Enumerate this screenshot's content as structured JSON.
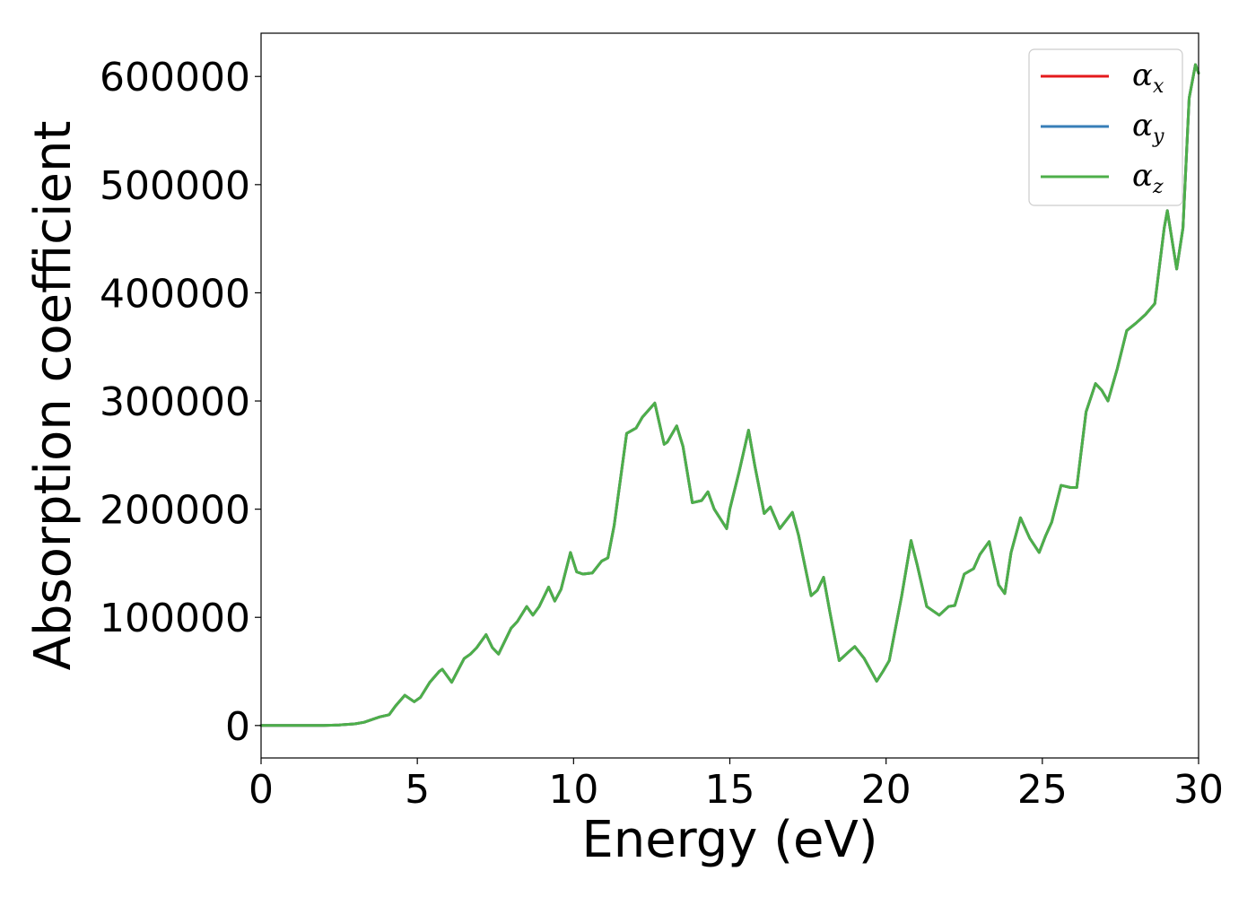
{
  "chart_data": {
    "type": "line",
    "xlabel": "Energy (eV)",
    "ylabel": "Absorption coefficient",
    "xlim": [
      0,
      30
    ],
    "ylim": [
      -30000,
      640000
    ],
    "xticks": [
      0,
      5,
      10,
      15,
      20,
      25,
      30
    ],
    "xtick_labels": [
      "0",
      "5",
      "10",
      "15",
      "20",
      "25",
      "30"
    ],
    "yticks": [
      0,
      100000,
      200000,
      300000,
      400000,
      500000,
      600000
    ],
    "ytick_labels": [
      "0",
      "100000",
      "200000",
      "300000",
      "400000",
      "500000",
      "600000"
    ],
    "grid": false,
    "legend_position": "top-right",
    "series": [
      {
        "name": "αx",
        "legend_base": "α",
        "legend_sub": "x",
        "color": "#e41a1c",
        "x": [
          0,
          1,
          2,
          2.5,
          3,
          3.3,
          3.6,
          3.8,
          4.1,
          4.3,
          4.6,
          4.9,
          5.1,
          5.4,
          5.7,
          5.8,
          6.1,
          6.5,
          6.7,
          6.9,
          7.2,
          7.4,
          7.6,
          8.0,
          8.2,
          8.5,
          8.7,
          8.9,
          9.2,
          9.4,
          9.6,
          9.9,
          10.1,
          10.3,
          10.6,
          10.9,
          11.1,
          11.3,
          11.7,
          12.0,
          12.2,
          12.6,
          12.9,
          13.0,
          13.3,
          13.5,
          13.8,
          14.1,
          14.3,
          14.5,
          14.9,
          15.0,
          15.3,
          15.6,
          15.8,
          16.1,
          16.3,
          16.6,
          17.0,
          17.2,
          17.6,
          17.8,
          18.0,
          18.2,
          18.5,
          18.8,
          19.0,
          19.3,
          19.7,
          19.9,
          20.1,
          20.5,
          20.8,
          21.0,
          21.3,
          21.7,
          22.0,
          22.2,
          22.5,
          22.8,
          23.0,
          23.3,
          23.6,
          23.8,
          24.0,
          24.3,
          24.6,
          24.9,
          25.1,
          25.3,
          25.6,
          25.9,
          26.1,
          26.4,
          26.7,
          26.9,
          27.1,
          27.4,
          27.7,
          28.0,
          28.3,
          28.6,
          28.9,
          29.0,
          29.2,
          29.3,
          29.5,
          29.7,
          29.9,
          30.0
        ],
        "y": [
          0,
          0,
          0,
          500,
          1500,
          3000,
          6000,
          8000,
          10000,
          18000,
          28000,
          22000,
          26000,
          40000,
          50000,
          52000,
          40000,
          62000,
          66000,
          72000,
          84000,
          72000,
          66000,
          90000,
          96000,
          110000,
          102000,
          110000,
          128000,
          115000,
          126000,
          160000,
          142000,
          140000,
          141000,
          152000,
          155000,
          185000,
          270000,
          275000,
          285000,
          298000,
          260000,
          262000,
          277000,
          258000,
          206000,
          208000,
          216000,
          200000,
          182000,
          200000,
          235000,
          273000,
          240000,
          196000,
          202000,
          182000,
          197000,
          176000,
          120000,
          125000,
          137000,
          105000,
          60000,
          68000,
          73000,
          62000,
          41000,
          50000,
          60000,
          120000,
          171000,
          148000,
          110000,
          102000,
          110000,
          111000,
          140000,
          145000,
          158000,
          170000,
          130000,
          122000,
          160000,
          192000,
          173000,
          160000,
          175000,
          188000,
          222000,
          220000,
          220000,
          290000,
          316000,
          310000,
          300000,
          330000,
          365000,
          372000,
          380000,
          390000,
          460000,
          476000,
          440000,
          422000,
          460000,
          580000,
          611000,
          603000
        ]
      },
      {
        "name": "αy",
        "legend_base": "α",
        "legend_sub": "y",
        "color": "#377eb8",
        "x": [
          0,
          1,
          2,
          2.5,
          3,
          3.3,
          3.6,
          3.8,
          4.1,
          4.3,
          4.6,
          4.9,
          5.1,
          5.4,
          5.7,
          5.8,
          6.1,
          6.5,
          6.7,
          6.9,
          7.2,
          7.4,
          7.6,
          8.0,
          8.2,
          8.5,
          8.7,
          8.9,
          9.2,
          9.4,
          9.6,
          9.9,
          10.1,
          10.3,
          10.6,
          10.9,
          11.1,
          11.3,
          11.7,
          12.0,
          12.2,
          12.6,
          12.9,
          13.0,
          13.3,
          13.5,
          13.8,
          14.1,
          14.3,
          14.5,
          14.9,
          15.0,
          15.3,
          15.6,
          15.8,
          16.1,
          16.3,
          16.6,
          17.0,
          17.2,
          17.6,
          17.8,
          18.0,
          18.2,
          18.5,
          18.8,
          19.0,
          19.3,
          19.7,
          19.9,
          20.1,
          20.5,
          20.8,
          21.0,
          21.3,
          21.7,
          22.0,
          22.2,
          22.5,
          22.8,
          23.0,
          23.3,
          23.6,
          23.8,
          24.0,
          24.3,
          24.6,
          24.9,
          25.1,
          25.3,
          25.6,
          25.9,
          26.1,
          26.4,
          26.7,
          26.9,
          27.1,
          27.4,
          27.7,
          28.0,
          28.3,
          28.6,
          28.9,
          29.0,
          29.2,
          29.3,
          29.5,
          29.7,
          29.9,
          30.0
        ],
        "y": [
          0,
          0,
          0,
          500,
          1500,
          3000,
          6000,
          8000,
          10000,
          18000,
          28000,
          22000,
          26000,
          40000,
          50000,
          52000,
          40000,
          62000,
          66000,
          72000,
          84000,
          72000,
          66000,
          90000,
          96000,
          110000,
          102000,
          110000,
          128000,
          115000,
          126000,
          160000,
          142000,
          140000,
          141000,
          152000,
          155000,
          185000,
          270000,
          275000,
          285000,
          298000,
          260000,
          262000,
          277000,
          258000,
          206000,
          208000,
          216000,
          200000,
          182000,
          200000,
          235000,
          273000,
          240000,
          196000,
          202000,
          182000,
          197000,
          176000,
          120000,
          125000,
          137000,
          105000,
          60000,
          68000,
          73000,
          62000,
          41000,
          50000,
          60000,
          120000,
          171000,
          148000,
          110000,
          102000,
          110000,
          111000,
          140000,
          145000,
          158000,
          170000,
          130000,
          122000,
          160000,
          192000,
          173000,
          160000,
          175000,
          188000,
          222000,
          220000,
          220000,
          290000,
          316000,
          310000,
          300000,
          330000,
          365000,
          372000,
          380000,
          390000,
          460000,
          476000,
          440000,
          422000,
          460000,
          580000,
          611000,
          603000
        ]
      },
      {
        "name": "αz",
        "legend_base": "α",
        "legend_sub": "z",
        "color": "#4daf4a",
        "x": [
          0,
          1,
          2,
          2.5,
          3,
          3.3,
          3.6,
          3.8,
          4.1,
          4.3,
          4.6,
          4.9,
          5.1,
          5.4,
          5.7,
          5.8,
          6.1,
          6.5,
          6.7,
          6.9,
          7.2,
          7.4,
          7.6,
          8.0,
          8.2,
          8.5,
          8.7,
          8.9,
          9.2,
          9.4,
          9.6,
          9.9,
          10.1,
          10.3,
          10.6,
          10.9,
          11.1,
          11.3,
          11.7,
          12.0,
          12.2,
          12.6,
          12.9,
          13.0,
          13.3,
          13.5,
          13.8,
          14.1,
          14.3,
          14.5,
          14.9,
          15.0,
          15.3,
          15.6,
          15.8,
          16.1,
          16.3,
          16.6,
          17.0,
          17.2,
          17.6,
          17.8,
          18.0,
          18.2,
          18.5,
          18.8,
          19.0,
          19.3,
          19.7,
          19.9,
          20.1,
          20.5,
          20.8,
          21.0,
          21.3,
          21.7,
          22.0,
          22.2,
          22.5,
          22.8,
          23.0,
          23.3,
          23.6,
          23.8,
          24.0,
          24.3,
          24.6,
          24.9,
          25.1,
          25.3,
          25.6,
          25.9,
          26.1,
          26.4,
          26.7,
          26.9,
          27.1,
          27.4,
          27.7,
          28.0,
          28.3,
          28.6,
          28.9,
          29.0,
          29.2,
          29.3,
          29.5,
          29.7,
          29.9,
          30.0
        ],
        "y": [
          0,
          0,
          0,
          500,
          1500,
          3000,
          6000,
          8000,
          10000,
          18000,
          28000,
          22000,
          26000,
          40000,
          50000,
          52000,
          40000,
          62000,
          66000,
          72000,
          84000,
          72000,
          66000,
          90000,
          96000,
          110000,
          102000,
          110000,
          128000,
          115000,
          126000,
          160000,
          142000,
          140000,
          141000,
          152000,
          155000,
          185000,
          270000,
          275000,
          285000,
          298000,
          260000,
          262000,
          277000,
          258000,
          206000,
          208000,
          216000,
          200000,
          182000,
          200000,
          235000,
          273000,
          240000,
          196000,
          202000,
          182000,
          197000,
          176000,
          120000,
          125000,
          137000,
          105000,
          60000,
          68000,
          73000,
          62000,
          41000,
          50000,
          60000,
          120000,
          171000,
          148000,
          110000,
          102000,
          110000,
          111000,
          140000,
          145000,
          158000,
          170000,
          130000,
          122000,
          160000,
          192000,
          173000,
          160000,
          175000,
          188000,
          222000,
          220000,
          220000,
          290000,
          316000,
          310000,
          300000,
          330000,
          365000,
          372000,
          380000,
          390000,
          460000,
          476000,
          440000,
          422000,
          460000,
          580000,
          611000,
          603000
        ]
      }
    ]
  }
}
